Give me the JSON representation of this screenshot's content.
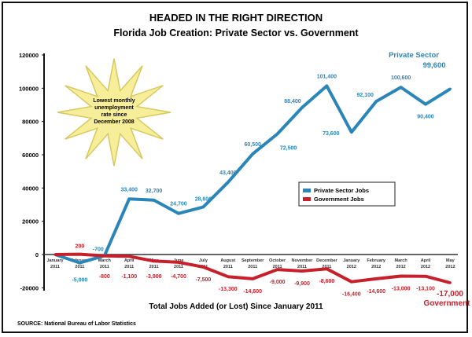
{
  "chart_data": {
    "type": "line",
    "title": "HEADED IN THE RIGHT DIRECTION",
    "subtitle": "Florida Job Creation: Private Sector vs. Government",
    "xlabel": "Total Jobs Added (or Lost) Since January 2011",
    "ylabel": "",
    "ylim": [
      -20000,
      120000
    ],
    "yticks": [
      "120000",
      "100000",
      "80000",
      "60000",
      "40000",
      "20000",
      "0",
      "-20000"
    ],
    "grid": false,
    "legend": "center-right",
    "categories": [
      [
        "January",
        "2011"
      ],
      [
        "February",
        "2011"
      ],
      [
        "March",
        "2011"
      ],
      [
        "April",
        "2011"
      ],
      [
        "May",
        "2011"
      ],
      [
        "June",
        "2011"
      ],
      [
        "July",
        "2011"
      ],
      [
        "August",
        "2011"
      ],
      [
        "September",
        "2011"
      ],
      [
        "October",
        "2011"
      ],
      [
        "November",
        "2011"
      ],
      [
        "December",
        "2011"
      ],
      [
        "January",
        "2012"
      ],
      [
        "February",
        "2012"
      ],
      [
        "March",
        "2012"
      ],
      [
        "April",
        "2012"
      ],
      [
        "May",
        "2012"
      ]
    ],
    "series": [
      {
        "name": "Private Sector Jobs",
        "color": "#2a86b8",
        "values": [
          0,
          -5000,
          -700,
          33400,
          32700,
          24700,
          28600,
          43400,
          60500,
          72500,
          88400,
          101400,
          73600,
          92100,
          100600,
          90400,
          99600
        ],
        "labels": [
          "",
          "-5,000",
          "-700",
          "33,400",
          "32,700",
          "24,700",
          "28,600",
          "43,400",
          "60,500",
          "72,500",
          "88,400",
          "101,400",
          "73,600",
          "92,100",
          "100,600",
          "90,400",
          ""
        ]
      },
      {
        "name": "Government Jobs",
        "color": "#c8202a",
        "values": [
          0,
          200,
          -800,
          -1100,
          -3900,
          -4700,
          -7500,
          -13300,
          -14600,
          -9000,
          -9900,
          -8600,
          -16400,
          -14600,
          -13000,
          -13100,
          -17000
        ],
        "labels": [
          "",
          "200",
          "-800",
          "-1,100",
          "-3,900",
          "-4,700",
          "-7,500",
          "-13,300",
          "-14,600",
          "-9,000",
          "-9,900",
          "-8,600",
          "-16,400",
          "-14,600",
          "-13,000",
          "-13,100",
          ""
        ]
      }
    ],
    "annotations": {
      "private_end_name": "Private Sector",
      "private_end_value": "99,600",
      "gov_end_value": "-17,000",
      "gov_end_name": "Government",
      "starburst": [
        "Lowest monthly",
        "unemployment",
        "rate since",
        "December 2008"
      ]
    },
    "colors": {
      "star_fill": "#f7ee9a",
      "star_stroke": "#d8c860"
    }
  },
  "source": "SOURCE: National Bureau of Labor Statistics"
}
